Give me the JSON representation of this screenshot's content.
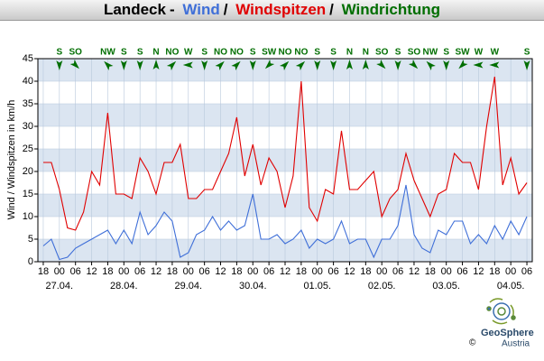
{
  "chart_data": {
    "type": "line",
    "title": {
      "station": "Landeck",
      "dash": "-",
      "separator": "/"
    },
    "ylabel": "Wind / Windspitzen in km/h",
    "x": [
      "26.04. 18",
      "26.04. 21",
      "27.04. 00",
      "27.04. 03",
      "27.04. 06",
      "27.04. 09",
      "27.04. 12",
      "27.04. 15",
      "27.04. 18",
      "27.04. 21",
      "28.04. 00",
      "28.04. 03",
      "28.04. 06",
      "28.04. 09",
      "28.04. 12",
      "28.04. 15",
      "28.04. 18",
      "28.04. 21",
      "29.04. 00",
      "29.04. 03",
      "29.04. 06",
      "29.04. 09",
      "29.04. 12",
      "29.04. 15",
      "29.04. 18",
      "29.04. 21",
      "30.04. 00",
      "30.04. 03",
      "30.04. 06",
      "30.04. 09",
      "30.04. 12",
      "30.04. 15",
      "30.04. 18",
      "30.04. 21",
      "01.05. 00",
      "01.05. 03",
      "01.05. 06",
      "01.05. 09",
      "01.05. 12",
      "01.05. 15",
      "01.05. 18",
      "01.05. 21",
      "02.05. 00",
      "02.05. 03",
      "02.05. 06",
      "02.05. 09",
      "02.05. 12",
      "02.05. 15",
      "02.05. 18",
      "02.05. 21",
      "03.05. 00",
      "03.05. 03",
      "03.05. 06",
      "03.05. 09",
      "03.05. 12",
      "03.05. 15",
      "03.05. 18",
      "03.05. 21",
      "04.05. 00",
      "04.05. 03",
      "04.05. 06"
    ],
    "series": [
      {
        "name": "Wind",
        "color": "#3f6fd8",
        "values": [
          3.5,
          5,
          0.5,
          1,
          3,
          4,
          5,
          6,
          7,
          4,
          7,
          4,
          11,
          6,
          8,
          11,
          9,
          1,
          2,
          6,
          7,
          10,
          7,
          9,
          7,
          8,
          15,
          5,
          5,
          6,
          4,
          5,
          7,
          3,
          5,
          4,
          5,
          9,
          4,
          5,
          5,
          1,
          5,
          5,
          8,
          17,
          6,
          3,
          2,
          7,
          6,
          9,
          9,
          4,
          6,
          4,
          8,
          5,
          9,
          6,
          10
        ]
      },
      {
        "name": "Windspitzen",
        "color": "#e00000",
        "values": [
          22,
          22,
          16,
          7.5,
          7,
          11,
          20,
          17,
          33,
          15,
          15,
          14,
          23,
          20,
          15,
          22,
          22,
          26,
          14,
          14,
          16,
          16,
          20,
          24,
          32,
          19,
          26,
          17,
          23,
          20,
          12,
          19,
          40,
          12,
          9,
          16,
          15,
          29,
          16,
          16,
          18,
          20,
          10,
          14,
          16,
          24,
          18,
          14,
          10,
          15,
          16,
          24,
          22,
          22,
          16,
          30,
          41,
          17,
          23,
          15,
          17.5
        ]
      }
    ],
    "wind_direction": {
      "name": "Windrichtung",
      "color": "#006e00",
      "x": [
        "27.04. 00",
        "27.04. 06",
        "27.04. 12",
        "27.04. 18",
        "28.04. 00",
        "28.04. 06",
        "28.04. 12",
        "28.04. 18",
        "29.04. 00",
        "29.04. 06",
        "29.04. 12",
        "29.04. 18",
        "30.04. 00",
        "30.04. 06",
        "30.04. 12",
        "30.04. 18",
        "01.05. 00",
        "01.05. 06",
        "01.05. 12",
        "01.05. 18",
        "02.05. 00",
        "02.05. 06",
        "02.05. 12",
        "02.05. 18",
        "03.05. 00",
        "03.05. 06",
        "03.05. 12",
        "03.05. 18",
        "04.05. 00",
        "04.05. 06"
      ],
      "labels": [
        "S",
        "SO",
        null,
        "NW",
        "S",
        "S",
        "N",
        "NO",
        "W",
        "S",
        "NO",
        "NO",
        "S",
        "SW",
        "NO",
        "NO",
        "S",
        "S",
        "N",
        "N",
        "SO",
        "S",
        "SO",
        "NW",
        "S",
        "SW",
        "W",
        "W",
        null,
        "S"
      ]
    },
    "xlim": [
      "26.04. 16",
      "04.05. 08"
    ],
    "xticks": [
      {
        "value": "26.04. 18",
        "label": "18"
      },
      {
        "value": "27.04. 00",
        "label": "00"
      },
      {
        "value": "27.04. 06",
        "label": "06"
      },
      {
        "value": "27.04. 12",
        "label": "12"
      },
      {
        "value": "27.04. 18",
        "label": "18"
      },
      {
        "value": "28.04. 00",
        "label": "00"
      },
      {
        "value": "28.04. 06",
        "label": "06"
      },
      {
        "value": "28.04. 12",
        "label": "12"
      },
      {
        "value": "28.04. 18",
        "label": "18"
      },
      {
        "value": "29.04. 00",
        "label": "00"
      },
      {
        "value": "29.04. 06",
        "label": "06"
      },
      {
        "value": "29.04. 12",
        "label": "12"
      },
      {
        "value": "29.04. 18",
        "label": "18"
      },
      {
        "value": "30.04. 00",
        "label": "00"
      },
      {
        "value": "30.04. 06",
        "label": "06"
      },
      {
        "value": "30.04. 12",
        "label": "12"
      },
      {
        "value": "30.04. 18",
        "label": "18"
      },
      {
        "value": "01.05. 00",
        "label": "00"
      },
      {
        "value": "01.05. 06",
        "label": "06"
      },
      {
        "value": "01.05. 12",
        "label": "12"
      },
      {
        "value": "01.05. 18",
        "label": "18"
      },
      {
        "value": "02.05. 00",
        "label": "00"
      },
      {
        "value": "02.05. 06",
        "label": "06"
      },
      {
        "value": "02.05. 12",
        "label": "12"
      },
      {
        "value": "02.05. 18",
        "label": "18"
      },
      {
        "value": "03.05. 00",
        "label": "00"
      },
      {
        "value": "03.05. 06",
        "label": "06"
      },
      {
        "value": "03.05. 12",
        "label": "12"
      },
      {
        "value": "03.05. 18",
        "label": "18"
      },
      {
        "value": "04.05. 00",
        "label": "00"
      },
      {
        "value": "04.05. 06",
        "label": "06"
      }
    ],
    "date_ticks": [
      {
        "value": "27.04. 00",
        "label": "27.04."
      },
      {
        "value": "28.04. 00",
        "label": "28.04."
      },
      {
        "value": "29.04. 00",
        "label": "29.04."
      },
      {
        "value": "30.04. 00",
        "label": "30.04."
      },
      {
        "value": "01.05. 00",
        "label": "01.05."
      },
      {
        "value": "02.05. 00",
        "label": "02.05."
      },
      {
        "value": "03.05. 00",
        "label": "03.05."
      },
      {
        "value": "04.05. 00",
        "label": "04.05."
      }
    ],
    "ylim": [
      0,
      45
    ],
    "yticks": [
      0,
      5,
      10,
      15,
      20,
      25,
      30,
      35,
      40,
      45
    ],
    "grid": true,
    "branding": {
      "name": "GeoSphere",
      "country": "Austria",
      "copyright": "©"
    }
  }
}
